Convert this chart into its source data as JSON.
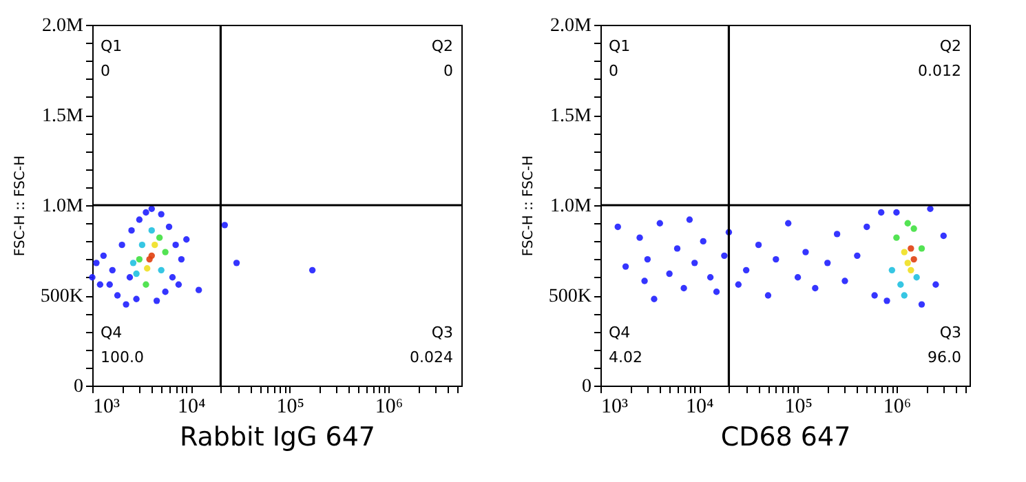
{
  "chart_data": [
    {
      "type": "scatter",
      "xlabel": "Rabbit IgG 647",
      "ylabel": "FSC-H :: FSC-H",
      "log": "x",
      "marker": "circle",
      "xlim": [
        1000,
        5500000
      ],
      "ylim": [
        0,
        2000000
      ],
      "xticks": [
        {
          "value": 1000,
          "label": "10³"
        },
        {
          "value": 2000,
          "label": null
        },
        {
          "value": 3000,
          "label": null
        },
        {
          "value": 4000,
          "label": null
        },
        {
          "value": 5000,
          "label": null
        },
        {
          "value": 6000,
          "label": null
        },
        {
          "value": 7000,
          "label": null
        },
        {
          "value": 8000,
          "label": null
        },
        {
          "value": 9000,
          "label": null
        },
        {
          "value": 10000,
          "label": "10⁴"
        },
        {
          "value": 20000,
          "label": null
        },
        {
          "value": 30000,
          "label": null
        },
        {
          "value": 40000,
          "label": null
        },
        {
          "value": 50000,
          "label": null
        },
        {
          "value": 60000,
          "label": null
        },
        {
          "value": 70000,
          "label": null
        },
        {
          "value": 80000,
          "label": null
        },
        {
          "value": 90000,
          "label": null
        },
        {
          "value": 100000,
          "label": "10⁵"
        },
        {
          "value": 200000,
          "label": null
        },
        {
          "value": 300000,
          "label": null
        },
        {
          "value": 400000,
          "label": null
        },
        {
          "value": 500000,
          "label": null
        },
        {
          "value": 600000,
          "label": null
        },
        {
          "value": 700000,
          "label": null
        },
        {
          "value": 800000,
          "label": null
        },
        {
          "value": 900000,
          "label": null
        },
        {
          "value": 1000000,
          "label": "10⁶"
        },
        {
          "value": 2000000,
          "label": null
        },
        {
          "value": 3000000,
          "label": null
        },
        {
          "value": 4000000,
          "label": null
        },
        {
          "value": 5000000,
          "label": null
        }
      ],
      "yticks": [
        0,
        {
          "value": 100000,
          "label": null
        },
        {
          "value": 200000,
          "label": null
        },
        {
          "value": 300000,
          "label": null
        },
        {
          "value": 400000,
          "label": null
        },
        {
          "value": 500000,
          "label": "500K"
        },
        {
          "value": 600000,
          "label": null
        },
        {
          "value": 700000,
          "label": null
        },
        {
          "value": 800000,
          "label": null
        },
        {
          "value": 900000,
          "label": null
        },
        {
          "value": 1000000,
          "label": "1.0M"
        },
        {
          "value": 1100000,
          "label": null
        },
        {
          "value": 1200000,
          "label": null
        },
        {
          "value": 1300000,
          "label": null
        },
        {
          "value": 1400000,
          "label": null
        },
        {
          "value": 1500000,
          "label": "1.5M"
        },
        {
          "value": 1600000,
          "label": null
        },
        {
          "value": 1700000,
          "label": null
        },
        {
          "value": 1800000,
          "label": null
        },
        {
          "value": 1900000,
          "label": null
        },
        {
          "value": 2000000,
          "label": "2.0M"
        }
      ],
      "x": [
        1000,
        1100,
        1300,
        1500,
        1800,
        2000,
        2200,
        2500,
        2800,
        3000,
        3500,
        4000,
        4500,
        5000,
        5500,
        6000,
        6500,
        7000,
        8000,
        9000,
        12000,
        22000,
        29000,
        170000,
        1200,
        1600,
        2400,
        7500,
        2800,
        3000,
        3200,
        3500,
        4000,
        4800,
        5000,
        5500,
        2600,
        3600,
        4000,
        4300,
        3800
      ],
      "values": [
        600000,
        680000,
        720000,
        560000,
        500000,
        780000,
        450000,
        860000,
        480000,
        920000,
        960000,
        980000,
        470000,
        950000,
        520000,
        880000,
        600000,
        780000,
        700000,
        810000,
        530000,
        890000,
        680000,
        640000,
        560000,
        640000,
        600000,
        560000,
        620000,
        700000,
        780000,
        560000,
        860000,
        820000,
        640000,
        740000,
        680000,
        650000,
        720000,
        780000,
        700000
      ],
      "colors": [
        "#1f1fff",
        "#1f1fff",
        "#1f1fff",
        "#1f1fff",
        "#1f1fff",
        "#1f1fff",
        "#1f1fff",
        "#1f1fff",
        "#1f1fff",
        "#1f1fff",
        "#1f1fff",
        "#1f1fff",
        "#1f1fff",
        "#1f1fff",
        "#1f1fff",
        "#1f1fff",
        "#1f1fff",
        "#1f1fff",
        "#1f1fff",
        "#1f1fff",
        "#1f1fff",
        "#1f1fff",
        "#1f1fff",
        "#1f1fff",
        "#1f1fff",
        "#1f1fff",
        "#1f1fff",
        "#1f1fff",
        "#20c0e0",
        "#40e040",
        "#20c0e0",
        "#40e040",
        "#20c0e0",
        "#40e040",
        "#20c0e0",
        "#40e040",
        "#20c0e0",
        "#f0e020",
        "#e04010",
        "#f0e020",
        "#e04010"
      ],
      "ref_lines": [
        {
          "axis": "x",
          "value": 20000,
          "color": "#000000"
        },
        {
          "axis": "y",
          "value": 1000000,
          "color": "#000000"
        }
      ],
      "annotations": [
        "Q1",
        "0",
        "Q2",
        "0",
        "Q4",
        "100.0",
        "Q3",
        "0.024"
      ]
    },
    {
      "type": "scatter",
      "xlabel": "CD68 647",
      "ylabel": "FSC-H :: FSC-H",
      "log": "x",
      "marker": "circle",
      "xlim": [
        1000,
        5500000
      ],
      "ylim": [
        0,
        2000000
      ],
      "xticks": [
        {
          "value": 1000,
          "label": "10³"
        },
        {
          "value": 2000,
          "label": null
        },
        {
          "value": 3000,
          "label": null
        },
        {
          "value": 4000,
          "label": null
        },
        {
          "value": 5000,
          "label": null
        },
        {
          "value": 6000,
          "label": null
        },
        {
          "value": 7000,
          "label": null
        },
        {
          "value": 8000,
          "label": null
        },
        {
          "value": 9000,
          "label": null
        },
        {
          "value": 10000,
          "label": "10⁴"
        },
        {
          "value": 20000,
          "label": null
        },
        {
          "value": 30000,
          "label": null
        },
        {
          "value": 40000,
          "label": null
        },
        {
          "value": 50000,
          "label": null
        },
        {
          "value": 60000,
          "label": null
        },
        {
          "value": 70000,
          "label": null
        },
        {
          "value": 80000,
          "label": null
        },
        {
          "value": 90000,
          "label": null
        },
        {
          "value": 100000,
          "label": "10⁵"
        },
        {
          "value": 200000,
          "label": null
        },
        {
          "value": 300000,
          "label": null
        },
        {
          "value": 400000,
          "label": null
        },
        {
          "value": 500000,
          "label": null
        },
        {
          "value": 600000,
          "label": null
        },
        {
          "value": 700000,
          "label": null
        },
        {
          "value": 800000,
          "label": null
        },
        {
          "value": 900000,
          "label": null
        },
        {
          "value": 1000000,
          "label": "10⁶"
        },
        {
          "value": 2000000,
          "label": null
        },
        {
          "value": 3000000,
          "label": null
        },
        {
          "value": 4000000,
          "label": null
        },
        {
          "value": 5000000,
          "label": null
        }
      ],
      "yticks": [
        0,
        {
          "value": 100000,
          "label": null
        },
        {
          "value": 200000,
          "label": null
        },
        {
          "value": 300000,
          "label": null
        },
        {
          "value": 400000,
          "label": null
        },
        {
          "value": 500000,
          "label": "500K"
        },
        {
          "value": 600000,
          "label": null
        },
        {
          "value": 700000,
          "label": null
        },
        {
          "value": 800000,
          "label": null
        },
        {
          "value": 900000,
          "label": null
        },
        {
          "value": 1000000,
          "label": "1.0M"
        },
        {
          "value": 1100000,
          "label": null
        },
        {
          "value": 1200000,
          "label": null
        },
        {
          "value": 1300000,
          "label": null
        },
        {
          "value": 1400000,
          "label": null
        },
        {
          "value": 1500000,
          "label": "1.5M"
        },
        {
          "value": 1600000,
          "label": null
        },
        {
          "value": 1700000,
          "label": null
        },
        {
          "value": 1800000,
          "label": null
        },
        {
          "value": 1900000,
          "label": null
        },
        {
          "value": 2000000,
          "label": "2.0M"
        }
      ],
      "x": [
        1500,
        1800,
        2500,
        2800,
        3000,
        3500,
        4000,
        5000,
        6000,
        7000,
        8000,
        9000,
        11000,
        13000,
        15000,
        18000,
        20000,
        25000,
        30000,
        40000,
        50000,
        60000,
        80000,
        100000,
        120000,
        150000,
        200000,
        250000,
        300000,
        400000,
        500000,
        600000,
        3000000,
        2500000,
        700000,
        1800000,
        2200000,
        1000000,
        800000,
        900000,
        1000000,
        1100000,
        1300000,
        1600000,
        1800000,
        1200000,
        1500000,
        1300000,
        1400000,
        1500000,
        1200000,
        1400000
      ],
      "values": [
        880000,
        660000,
        820000,
        580000,
        700000,
        480000,
        900000,
        620000,
        760000,
        540000,
        920000,
        680000,
        800000,
        600000,
        520000,
        720000,
        850000,
        560000,
        640000,
        780000,
        500000,
        700000,
        900000,
        600000,
        740000,
        540000,
        680000,
        840000,
        580000,
        720000,
        880000,
        500000,
        830000,
        560000,
        960000,
        450000,
        980000,
        960000,
        470000,
        640000,
        820000,
        560000,
        900000,
        600000,
        760000,
        500000,
        870000,
        680000,
        760000,
        700000,
        740000,
        640000
      ],
      "colors": [
        "#1f1fff",
        "#1f1fff",
        "#1f1fff",
        "#1f1fff",
        "#1f1fff",
        "#1f1fff",
        "#1f1fff",
        "#1f1fff",
        "#1f1fff",
        "#1f1fff",
        "#1f1fff",
        "#1f1fff",
        "#1f1fff",
        "#1f1fff",
        "#1f1fff",
        "#1f1fff",
        "#1f1fff",
        "#1f1fff",
        "#1f1fff",
        "#1f1fff",
        "#1f1fff",
        "#1f1fff",
        "#1f1fff",
        "#1f1fff",
        "#1f1fff",
        "#1f1fff",
        "#1f1fff",
        "#1f1fff",
        "#1f1fff",
        "#1f1fff",
        "#1f1fff",
        "#1f1fff",
        "#1f1fff",
        "#1f1fff",
        "#1f1fff",
        "#1f1fff",
        "#1f1fff",
        "#1f1fff",
        "#1f1fff",
        "#20c0e0",
        "#40e040",
        "#20c0e0",
        "#40e040",
        "#20c0e0",
        "#40e040",
        "#20c0e0",
        "#40e040",
        "#f0e020",
        "#e04010",
        "#e04010",
        "#f0e020",
        "#f0e020"
      ],
      "ref_lines": [
        {
          "axis": "x",
          "value": 20000,
          "color": "#000000"
        },
        {
          "axis": "y",
          "value": 1000000,
          "color": "#000000"
        }
      ],
      "annotations": [
        "Q1",
        "0",
        "Q2",
        "0.012",
        "Q4",
        "4.02",
        "Q3",
        "96.0"
      ]
    }
  ]
}
